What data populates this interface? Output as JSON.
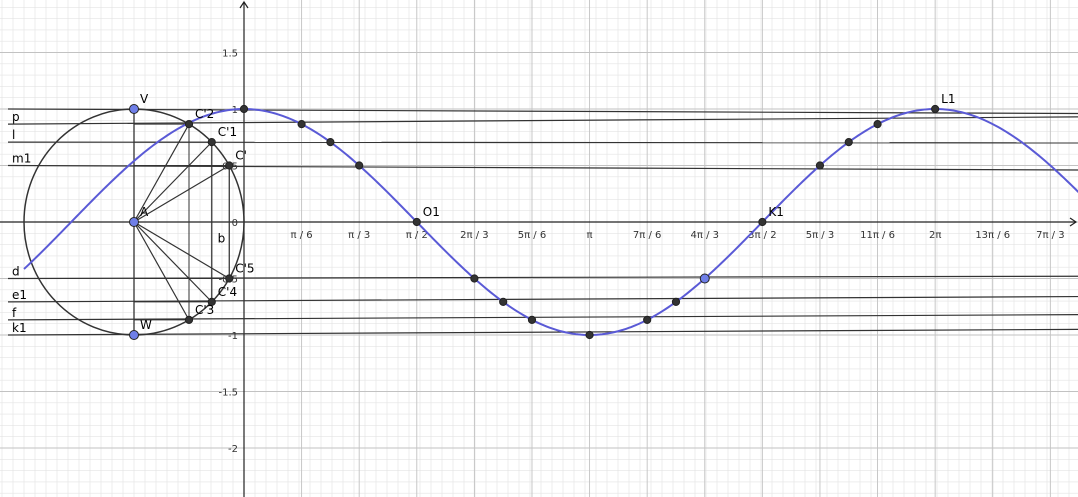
{
  "chart_data": {
    "type": "line",
    "title": "",
    "xlabel": "",
    "ylabel": "",
    "xlim": [
      -6.6,
      9.4
    ],
    "ylim": [
      -2.47,
      1.92
    ],
    "grid": true,
    "x_ticks": [
      {
        "label": "π / 6",
        "value": 0.5236
      },
      {
        "label": "π / 3",
        "value": 1.0472
      },
      {
        "label": "π / 2",
        "value": 1.5708
      },
      {
        "label": "2π / 3",
        "value": 2.0944
      },
      {
        "label": "5π / 6",
        "value": 2.618
      },
      {
        "label": "π",
        "value": 3.1416
      },
      {
        "label": "7π / 6",
        "value": 3.6652
      },
      {
        "label": "4π / 3",
        "value": 4.1888
      },
      {
        "label": "3π / 2",
        "value": 4.7124
      },
      {
        "label": "5π / 3",
        "value": 5.236
      },
      {
        "label": "11π / 6",
        "value": 5.7596
      },
      {
        "label": "2π",
        "value": 6.2832
      },
      {
        "label": "13π / 6",
        "value": 6.8068
      },
      {
        "label": "7π / 3",
        "value": 7.3304
      }
    ],
    "y_ticks": [
      {
        "label": "1.5",
        "value": 1.5
      },
      {
        "label": "1",
        "value": 1
      },
      {
        "label": "0.5",
        "value": 0.5
      },
      {
        "label": "0",
        "value": 0
      },
      {
        "label": "-0.5",
        "value": -0.5
      },
      {
        "label": "-1",
        "value": -1
      },
      {
        "label": "-1.5",
        "value": -1.5
      },
      {
        "label": "-2",
        "value": -2
      }
    ],
    "curve": {
      "function": "cos",
      "x_range": [
        -2.0,
        7.6
      ],
      "color": "#5a5ad6"
    },
    "unit_circle": {
      "center": [
        -1.0,
        0
      ],
      "radius": 1,
      "color": "#333333"
    },
    "circle_points": [
      {
        "name": "A",
        "x": -1.0,
        "y": 0.0,
        "style": "blue"
      },
      {
        "name": "V",
        "x": -1.0,
        "y": 1.0,
        "style": "blue"
      },
      {
        "name": "W",
        "x": -1.0,
        "y": -1.0,
        "style": "blue"
      },
      {
        "name": "C'2",
        "x": -0.5,
        "y": 0.866,
        "style": "dark"
      },
      {
        "name": "C'1",
        "x": -0.293,
        "y": 0.707,
        "style": "dark"
      },
      {
        "name": "C'",
        "x": -0.134,
        "y": 0.5,
        "style": "dark"
      },
      {
        "name": "C'5",
        "x": -0.134,
        "y": -0.5,
        "style": "dark"
      },
      {
        "name": "C'4",
        "x": -0.293,
        "y": -0.707,
        "style": "dark"
      },
      {
        "name": "C'3",
        "x": -0.5,
        "y": -0.866,
        "style": "dark"
      }
    ],
    "curve_points": [
      {
        "name": "",
        "x": 0.0,
        "y": 1.0,
        "style": "dark"
      },
      {
        "name": "",
        "x": 0.5236,
        "y": 0.866,
        "style": "dark"
      },
      {
        "name": "",
        "x": 0.7854,
        "y": 0.707,
        "style": "dark"
      },
      {
        "name": "",
        "x": 1.0472,
        "y": 0.5,
        "style": "dark"
      },
      {
        "name": "O1",
        "x": 1.5708,
        "y": 0.0,
        "style": "dark"
      },
      {
        "name": "",
        "x": 2.0944,
        "y": -0.5,
        "style": "dark"
      },
      {
        "name": "",
        "x": 2.3562,
        "y": -0.707,
        "style": "dark"
      },
      {
        "name": "",
        "x": 2.618,
        "y": -0.866,
        "style": "dark"
      },
      {
        "name": "",
        "x": 3.1416,
        "y": -1.0,
        "style": "dark"
      },
      {
        "name": "",
        "x": 3.6652,
        "y": -0.866,
        "style": "dark"
      },
      {
        "name": "",
        "x": 3.927,
        "y": -0.707,
        "style": "dark"
      },
      {
        "name": "",
        "x": 4.1888,
        "y": -0.5,
        "style": "blue"
      },
      {
        "name": "K1",
        "x": 4.7124,
        "y": 0.0,
        "style": "dark"
      },
      {
        "name": "",
        "x": 5.236,
        "y": 0.5,
        "style": "dark"
      },
      {
        "name": "",
        "x": 5.4978,
        "y": 0.707,
        "style": "dark"
      },
      {
        "name": "",
        "x": 5.7596,
        "y": 0.866,
        "style": "dark"
      },
      {
        "name": "L1",
        "x": 6.2832,
        "y": 1.0,
        "style": "dark"
      }
    ],
    "lines": [
      {
        "name": "V",
        "y_left": 1.0,
        "y_right": 0.96
      },
      {
        "name": "p",
        "y_left": 0.866,
        "y_right": 0.93
      },
      {
        "name": "l",
        "y_left": 0.707,
        "y_right": 0.7
      },
      {
        "name": "m1",
        "y_left": 0.5,
        "y_right": 0.46
      },
      {
        "name": "d",
        "y_left": -0.5,
        "y_right": -0.48
      },
      {
        "name": "e1",
        "y_left": -0.707,
        "y_right": -0.66
      },
      {
        "name": "f",
        "y_left": -0.866,
        "y_right": -0.82
      },
      {
        "name": "k1",
        "y_left": -1.0,
        "y_right": -0.95
      }
    ],
    "segment_labels": [
      {
        "name": "b",
        "x": -0.24,
        "y": -0.18
      }
    ],
    "colors": {
      "curve": "#5a5ad6",
      "blue_point": "#6f7fe8",
      "dark_point": "#333333",
      "grid_minor": "#e3e3e3",
      "grid_major": "#c2c2c2"
    }
  }
}
